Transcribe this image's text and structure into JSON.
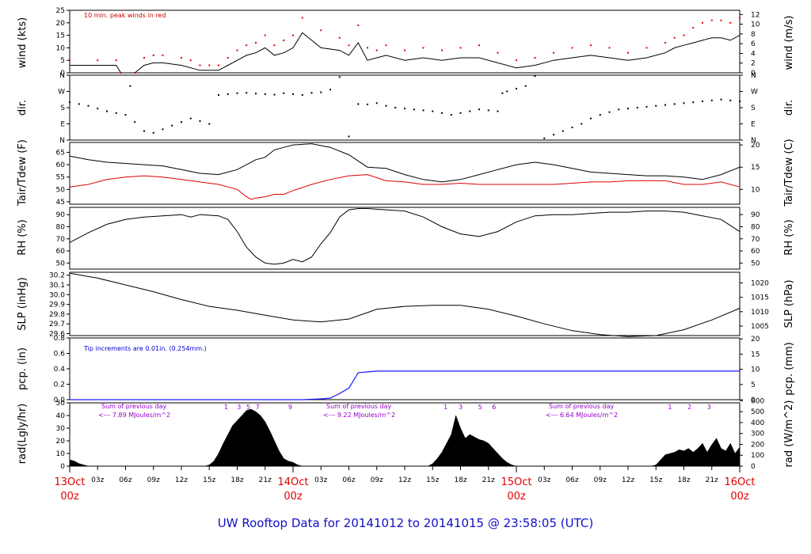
{
  "title": "UW Rooftop Data for 20141012  to  20141015 @ 23:58:05  (UTC)",
  "colors": {
    "primary": "#000000",
    "secondary": "#e00000",
    "precip": "#1a1aff",
    "note_red": "#cc0000",
    "note_blue": "#0000cc",
    "note_purple": "#9900cc",
    "title": "#1010c8"
  },
  "time_axis": {
    "hour_ticks": [
      "03z",
      "06z",
      "09z",
      "12z",
      "15z",
      "18z",
      "21z"
    ],
    "days": [
      {
        "date": "13Oct",
        "hour": "00z"
      },
      {
        "date": "14Oct",
        "hour": "00z"
      },
      {
        "date": "15Oct",
        "hour": "00z"
      },
      {
        "date": "16Oct",
        "hour": "00z"
      }
    ]
  },
  "panels": {
    "wind": {
      "left_label": "wind (kts)",
      "right_label": "wind (m/s)",
      "left_ticks": [
        0,
        5,
        10,
        15,
        20,
        25
      ],
      "right_ticks": [
        0,
        2,
        4,
        6,
        8,
        10,
        12
      ],
      "note": "10 min. peak winds in red"
    },
    "dir": {
      "left_label": "dir.",
      "right_label": "dir.",
      "ticks": [
        "N",
        "W",
        "S",
        "E",
        "N"
      ]
    },
    "temp": {
      "left_label": "Tair/Tdew (F)",
      "right_label": "Tair/Tdew (C)",
      "left_ticks": [
        45,
        50,
        55,
        60,
        65
      ],
      "right_ticks": [
        10,
        15,
        20
      ]
    },
    "rh": {
      "left_label": "RH (%)",
      "right_label": "RH (%)",
      "ticks": [
        50,
        60,
        70,
        80,
        90
      ]
    },
    "slp": {
      "left_label": "SLP (inHg)",
      "right_label": "SLP (hPa)",
      "left_ticks": [
        "29.6",
        "29.7",
        "29.8",
        "29.9",
        "30.0",
        "30.1",
        "30.2"
      ],
      "right_ticks": [
        1005,
        1010,
        1015,
        1020
      ]
    },
    "pcp": {
      "left_label": "pcp. (in)",
      "right_label": "pcp. (mm)",
      "left_ticks": [
        "0.0",
        "0.2",
        "0.4",
        "0.6",
        "0.8"
      ],
      "right_ticks": [
        0,
        5,
        10,
        15,
        20
      ],
      "note": "Tip increments are 0.01in. (0.254mm.)"
    },
    "rad": {
      "left_label": "rad(Lgly/hr)",
      "right_label": "rad (W/m^2)",
      "left_ticks": [
        0,
        10,
        20,
        30,
        40,
        50
      ],
      "right_ticks": [
        0,
        100,
        200,
        300,
        400,
        500,
        600
      ]
    }
  },
  "rad_sums": [
    {
      "line1": "Sum of previous day",
      "line2": "<--- 7.89 MJoules/m^2"
    },
    {
      "line1": "Sum of previous day",
      "line2": "<--- 9.22 MJoules/m^2"
    },
    {
      "line1": "Sum of previous day",
      "line2": "<--- 6.64 MJoules/m^2"
    }
  ],
  "rad_markers": [
    {
      "label": "1",
      "hour": 16.8
    },
    {
      "label": "3",
      "hour": 18.2
    },
    {
      "label": "5",
      "hour": 19.2
    },
    {
      "label": "7",
      "hour": 20.2
    },
    {
      "label": "9",
      "hour": 23.7
    },
    {
      "label": "1",
      "hour": 40.4
    },
    {
      "label": "3",
      "hour": 42.0
    },
    {
      "label": "5",
      "hour": 44.1
    },
    {
      "label": "6",
      "hour": 45.6
    },
    {
      "label": "1",
      "hour": 64.5
    },
    {
      "label": "2",
      "hour": 66.6
    },
    {
      "label": "3",
      "hour": 68.7
    }
  ],
  "chart_data": [
    {
      "type": "line",
      "name": "wind",
      "x_unit": "hours since 13Oct 00z",
      "xlim": [
        0,
        72
      ],
      "ylim": [
        0,
        25
      ],
      "ylabel": "wind (kts)",
      "series": [
        {
          "name": "10 min. peak winds",
          "x": [
            0,
            3,
            5,
            5.5,
            7,
            8,
            9,
            10,
            12,
            13,
            14,
            15,
            16,
            17,
            18,
            19,
            20,
            21,
            22,
            23,
            24,
            25,
            27,
            29,
            30,
            31,
            32,
            33,
            34,
            36,
            38,
            40,
            42,
            44,
            46,
            48,
            50,
            52,
            54,
            56,
            58,
            60,
            62,
            64,
            65,
            66,
            67,
            68,
            69,
            70,
            71,
            72
          ],
          "values": [
            5,
            5,
            5,
            0,
            0,
            6,
            7,
            7,
            6,
            5,
            3,
            3,
            3,
            6,
            9,
            11,
            12,
            15,
            11,
            13,
            15,
            22,
            17,
            14,
            11,
            19,
            10,
            9,
            11,
            9,
            10,
            9,
            10,
            11,
            8,
            5,
            6,
            8,
            10,
            11,
            10,
            8,
            10,
            12,
            14,
            15,
            18,
            20,
            21,
            21,
            20,
            22
          ]
        },
        {
          "name": "wind",
          "x": [
            0,
            3,
            5,
            5.5,
            7,
            8,
            9,
            10,
            12,
            13,
            14,
            15,
            16,
            17,
            18,
            19,
            20,
            21,
            22,
            23,
            24,
            25,
            27,
            29,
            30,
            31,
            32,
            33,
            34,
            36,
            38,
            40,
            42,
            44,
            46,
            48,
            50,
            52,
            54,
            56,
            58,
            60,
            62,
            64,
            65,
            66,
            67,
            68,
            69,
            70,
            71,
            72
          ],
          "values": [
            3,
            3,
            3,
            0,
            0,
            3,
            4,
            4,
            3,
            2,
            1,
            1,
            1,
            3,
            5,
            7,
            8,
            10,
            7,
            8,
            10,
            16,
            10,
            9,
            7,
            12,
            5,
            6,
            7,
            5,
            6,
            5,
            6,
            6,
            4,
            2,
            3,
            5,
            6,
            7,
            6,
            5,
            6,
            8,
            10,
            11,
            12,
            13,
            14,
            14,
            13,
            15
          ]
        }
      ]
    },
    {
      "type": "scatter",
      "name": "wind direction",
      "x_unit": "hours since 13Oct 00z",
      "xlim": [
        0,
        72
      ],
      "y_categories": [
        "N",
        "E",
        "S",
        "W",
        "N"
      ],
      "ylim": [
        0,
        360
      ],
      "ylabel": "dir.",
      "series": [
        {
          "name": "dir",
          "x": [
            0,
            1,
            2,
            3,
            4,
            5,
            6,
            6.5,
            7,
            8,
            9,
            10,
            11,
            12,
            13,
            14,
            15,
            16,
            17,
            18,
            19,
            20,
            21,
            22,
            23,
            24,
            25,
            26,
            27,
            28,
            29,
            30,
            31,
            32,
            33,
            34,
            35,
            36,
            37,
            38,
            39,
            40,
            41,
            42,
            43,
            44,
            45,
            46,
            46.5,
            47,
            48,
            49,
            50,
            51,
            52,
            53,
            54,
            55,
            56,
            57,
            58,
            59,
            60,
            61,
            62,
            63,
            64,
            65,
            66,
            67,
            68,
            69,
            70,
            71,
            72
          ],
          "values": [
            210,
            200,
            190,
            175,
            160,
            150,
            140,
            300,
            100,
            50,
            40,
            60,
            80,
            100,
            120,
            105,
            90,
            250,
            255,
            260,
            262,
            258,
            255,
            252,
            260,
            255,
            250,
            262,
            265,
            280,
            350,
            20,
            200,
            198,
            205,
            190,
            180,
            175,
            170,
            165,
            160,
            150,
            140,
            150,
            160,
            170,
            165,
            160,
            260,
            270,
            285,
            300,
            355,
            10,
            30,
            50,
            70,
            90,
            120,
            140,
            155,
            170,
            175,
            180,
            185,
            190,
            195,
            200,
            205,
            210,
            215,
            220,
            225,
            220,
            215
          ]
        }
      ]
    },
    {
      "type": "line",
      "name": "temperature",
      "x_unit": "hours since 13Oct 00z",
      "xlim": [
        0,
        72
      ],
      "ylim": [
        44,
        69
      ],
      "ylabel": "Tair/Tdew (F)",
      "series": [
        {
          "name": "Tair",
          "x": [
            0,
            2,
            4,
            6,
            8,
            10,
            12,
            14,
            16,
            18,
            19,
            20,
            21,
            22,
            23,
            24,
            26,
            28,
            30,
            32,
            34,
            36,
            38,
            40,
            42,
            44,
            46,
            48,
            50,
            52,
            54,
            56,
            58,
            60,
            62,
            64,
            66,
            68,
            70,
            72
          ],
          "values": [
            63.5,
            62,
            61,
            60.5,
            60,
            59.5,
            58,
            56.5,
            56,
            58,
            60,
            62,
            63,
            66,
            67,
            68,
            68.5,
            67,
            64,
            59,
            58.5,
            56,
            54,
            53,
            54,
            56,
            58,
            60,
            61,
            60,
            58.5,
            57,
            56.5,
            56,
            55.5,
            55.5,
            55,
            54,
            56,
            59
          ]
        },
        {
          "name": "Tdew",
          "x": [
            0,
            2,
            4,
            6,
            8,
            10,
            12,
            14,
            16,
            17,
            18,
            19,
            19.5,
            20,
            21,
            22,
            23,
            24,
            26,
            28,
            30,
            32,
            34,
            36,
            38,
            40,
            42,
            44,
            46,
            48,
            50,
            52,
            54,
            56,
            58,
            60,
            62,
            64,
            66,
            68,
            70,
            72
          ],
          "values": [
            51,
            52,
            54,
            55,
            55.5,
            55,
            54,
            53,
            52,
            51,
            50,
            47,
            46,
            46.5,
            47,
            48,
            48,
            49.5,
            52,
            54,
            55.5,
            56,
            53.5,
            53,
            52,
            52,
            52.5,
            52,
            52,
            52,
            52,
            52,
            52.5,
            53,
            53,
            53.5,
            53.5,
            53.5,
            52,
            52,
            53,
            51
          ]
        }
      ]
    },
    {
      "type": "line",
      "name": "relative humidity",
      "x_unit": "hours since 13Oct 00z",
      "xlim": [
        0,
        72
      ],
      "ylim": [
        45,
        96
      ],
      "ylabel": "RH (%)",
      "series": [
        {
          "name": "RH",
          "x": [
            0,
            2,
            4,
            6,
            8,
            10,
            12,
            13,
            14,
            16,
            17,
            18,
            19,
            20,
            21,
            22,
            23,
            24,
            25,
            26,
            27,
            28,
            29,
            30,
            31,
            32,
            34,
            36,
            38,
            40,
            42,
            44,
            46,
            48,
            50,
            52,
            54,
            56,
            58,
            60,
            62,
            64,
            66,
            68,
            70,
            72
          ],
          "values": [
            67,
            75,
            82,
            86,
            88,
            89,
            90,
            88,
            90,
            89,
            86,
            76,
            63,
            55,
            50,
            49,
            50,
            53,
            51,
            55,
            66,
            75,
            88,
            94,
            95,
            95,
            94,
            93,
            88,
            80,
            74,
            72,
            76,
            84,
            89,
            90,
            90,
            91,
            92,
            92,
            93,
            93,
            92,
            89,
            86,
            76
          ]
        }
      ]
    },
    {
      "type": "line",
      "name": "sea level pressure",
      "x_unit": "hours since 13Oct 00z",
      "xlim": [
        0,
        72
      ],
      "ylim": [
        29.58,
        30.23
      ],
      "ylabel": "SLP (inHg)",
      "series": [
        {
          "name": "SLP",
          "x": [
            0,
            3,
            6,
            9,
            12,
            15,
            18,
            21,
            24,
            27,
            30,
            33,
            36,
            39,
            42,
            45,
            48,
            51,
            54,
            57,
            60,
            63,
            66,
            69,
            72
          ],
          "values": [
            30.22,
            30.17,
            30.1,
            30.03,
            29.95,
            29.88,
            29.84,
            29.79,
            29.74,
            29.72,
            29.75,
            29.85,
            29.88,
            29.89,
            29.89,
            29.85,
            29.78,
            29.7,
            29.63,
            29.59,
            29.57,
            29.58,
            29.64,
            29.74,
            29.86
          ]
        }
      ]
    },
    {
      "type": "line",
      "name": "precipitation",
      "x_unit": "hours since 13Oct 00z",
      "xlim": [
        0,
        72
      ],
      "ylim": [
        0,
        0.8
      ],
      "ylabel": "pcp. (in)",
      "series": [
        {
          "name": "pcp",
          "x": [
            0,
            25,
            27,
            28,
            28.5,
            29,
            30,
            31,
            32,
            33,
            40,
            50,
            60,
            72
          ],
          "values": [
            0,
            0,
            0.01,
            0.02,
            0.05,
            0.08,
            0.15,
            0.35,
            0.36,
            0.37,
            0.37,
            0.37,
            0.37,
            0.37
          ]
        }
      ]
    },
    {
      "type": "area",
      "name": "solar radiation",
      "x_unit": "hours since 13Oct 00z",
      "xlim": [
        0,
        72
      ],
      "ylim": [
        0,
        50
      ],
      "ylabel": "rad(Lgly/hr)",
      "series": [
        {
          "name": "rad",
          "x": [
            0,
            0.5,
            1,
            1.5,
            2,
            14.5,
            15,
            15.5,
            16,
            16.5,
            17,
            17.5,
            18,
            18.5,
            19,
            19.5,
            20,
            20.5,
            21,
            21.5,
            22,
            22.5,
            23,
            23.5,
            24,
            24.5,
            25,
            38.5,
            39,
            39.5,
            40,
            40.5,
            41,
            41.5,
            42,
            42.5,
            43,
            43.5,
            44,
            44.5,
            45,
            45.5,
            46,
            46.5,
            47,
            47.5,
            48,
            62.5,
            63,
            63.5,
            64,
            64.5,
            65,
            65.5,
            66,
            66.5,
            67,
            67.5,
            68,
            68.5,
            69,
            69.5,
            70,
            70.5,
            71,
            71.5,
            72
          ],
          "values": [
            5,
            4,
            2,
            1,
            0,
            0,
            1,
            4,
            10,
            18,
            25,
            32,
            36,
            40,
            44,
            45,
            43,
            40,
            35,
            28,
            20,
            12,
            6,
            4,
            3,
            1,
            0,
            0,
            2,
            6,
            11,
            18,
            25,
            40,
            30,
            22,
            25,
            23,
            21,
            20,
            18,
            14,
            10,
            6,
            3,
            1,
            0,
            0,
            1,
            5,
            9,
            10,
            11,
            13,
            12,
            14,
            11,
            14,
            18,
            11,
            17,
            22,
            14,
            12,
            18,
            10,
            15
          ]
        }
      ]
    }
  ]
}
